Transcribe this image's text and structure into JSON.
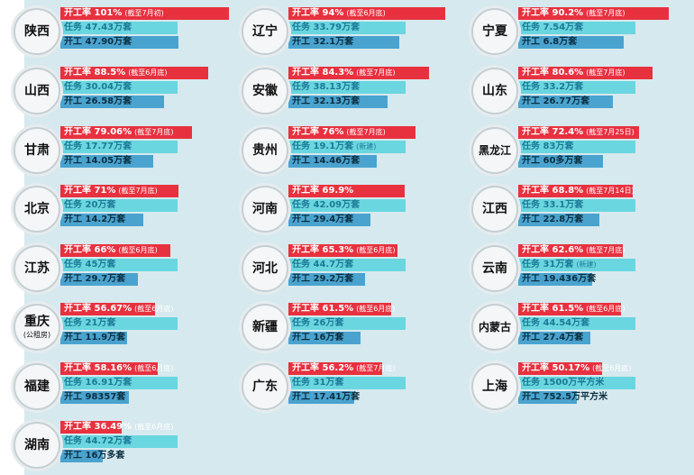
{
  "chart_data": {
    "type": "bar",
    "title": "",
    "xlabel": "",
    "ylabel": "",
    "colors": {
      "rate": "#e8313f",
      "task": "#6ad6df",
      "start": "#4aa3cf",
      "background": "#d6e9ee"
    },
    "series": [
      {
        "key": "rate",
        "name": "开工率"
      },
      {
        "key": "task",
        "name": "任务"
      },
      {
        "key": "start",
        "name": "开工"
      }
    ],
    "provinces": [
      {
        "name": "陕西",
        "note": "",
        "rate_value": 101,
        "rate_text": "开工率 101%",
        "rate_note": "(截至7月初)",
        "task_value": 47.43,
        "task_text": "任务 47.43万套",
        "task_note": "",
        "start_value": 47.9,
        "start_text": "开工 47.90万套"
      },
      {
        "name": "辽宁",
        "note": "",
        "rate_value": 94,
        "rate_text": "开工率 94%",
        "rate_note": "(截至6月底)",
        "task_value": 33.79,
        "task_text": "任务 33.79万套",
        "task_note": "",
        "start_value": 32.1,
        "start_text": "开工 32.1万套"
      },
      {
        "name": "宁夏",
        "note": "",
        "rate_value": 90.2,
        "rate_text": "开工率 90.2%",
        "rate_note": "(截至7月底)",
        "task_value": 7.54,
        "task_text": "任务 7.54万套",
        "task_note": "",
        "start_value": 6.8,
        "start_text": "开工 6.8万套"
      },
      {
        "name": "山西",
        "note": "",
        "rate_value": 88.5,
        "rate_text": "开工率 88.5%",
        "rate_note": "(截至6月底)",
        "task_value": 30.04,
        "task_text": "任务 30.04万套",
        "task_note": "",
        "start_value": 26.58,
        "start_text": "开工 26.58万套"
      },
      {
        "name": "安徽",
        "note": "",
        "rate_value": 84.3,
        "rate_text": "开工率 84.3%",
        "rate_note": "(截至7月底)",
        "task_value": 38.13,
        "task_text": "任务 38.13万套",
        "task_note": "",
        "start_value": 32.13,
        "start_text": "开工 32.13万套"
      },
      {
        "name": "山东",
        "note": "",
        "rate_value": 80.6,
        "rate_text": "开工率 80.6%",
        "rate_note": "(截至7月底)",
        "task_value": 33.2,
        "task_text": "任务 33.2万套",
        "task_note": "",
        "start_value": 26.77,
        "start_text": "开工 26.77万套"
      },
      {
        "name": "甘肃",
        "note": "",
        "rate_value": 79.06,
        "rate_text": "开工率 79.06%",
        "rate_note": "(截至7月底)",
        "task_value": 17.77,
        "task_text": "任务 17.77万套",
        "task_note": "",
        "start_value": 14.05,
        "start_text": "开工 14.05万套"
      },
      {
        "name": "贵州",
        "note": "",
        "rate_value": 76,
        "rate_text": "开工率 76%",
        "rate_note": "(截至7月底)",
        "task_value": 19.1,
        "task_text": "任务 19.1万套",
        "task_note": "(新建)",
        "start_value": 14.46,
        "start_text": "开工 14.46万套"
      },
      {
        "name": "黑龙江",
        "note": "",
        "rate_value": 72.4,
        "rate_text": "开工率 72.4%",
        "rate_note": "(截至7月25日)",
        "task_value": 83,
        "task_text": "任务 83万套",
        "task_note": "",
        "start_value": 60,
        "start_text": "开工 60多万套"
      },
      {
        "name": "北京",
        "note": "",
        "rate_value": 71,
        "rate_text": "开工率 71%",
        "rate_note": "(截至7月底)",
        "task_value": 20,
        "task_text": "任务 20万套",
        "task_note": "",
        "start_value": 14.2,
        "start_text": "开工 14.2万套"
      },
      {
        "name": "河南",
        "note": "",
        "rate_value": 69.9,
        "rate_text": "开工率 69.9%",
        "rate_note": "",
        "task_value": 42.09,
        "task_text": "任务 42.09万套",
        "task_note": "",
        "start_value": 29.4,
        "start_text": "开工 29.4万套"
      },
      {
        "name": "江西",
        "note": "",
        "rate_value": 68.8,
        "rate_text": "开工率 68.8%",
        "rate_note": "(截至7月14日)",
        "task_value": 33.1,
        "task_text": "任务 33.1万套",
        "task_note": "",
        "start_value": 22.8,
        "start_text": "开工 22.8万套"
      },
      {
        "name": "江苏",
        "note": "",
        "rate_value": 66,
        "rate_text": "开工率 66%",
        "rate_note": "(截至6月底)",
        "task_value": 45,
        "task_text": "任务 45万套",
        "task_note": "",
        "start_value": 29.7,
        "start_text": "开工 29.7万套"
      },
      {
        "name": "河北",
        "note": "",
        "rate_value": 65.3,
        "rate_text": "开工率 65.3%",
        "rate_note": "(截至6月底)",
        "task_value": 44.7,
        "task_text": "任务 44.7万套",
        "task_note": "",
        "start_value": 29.2,
        "start_text": "开工 29.2万套"
      },
      {
        "name": "云南",
        "note": "",
        "rate_value": 62.6,
        "rate_text": "开工率 62.6%",
        "rate_note": "(截至7月底)",
        "task_value": 31,
        "task_text": "任务 31万套",
        "task_note": "(新建)",
        "start_value": 19.436,
        "start_text": "开工 19.436万套"
      },
      {
        "name": "重庆",
        "note": "(公租房)",
        "rate_value": 56.67,
        "rate_text": "开工率 56.67%",
        "rate_note": "(截至6月底)",
        "task_value": 21,
        "task_text": "任务 21万套",
        "task_note": "",
        "start_value": 11.9,
        "start_text": "开工 11.9万套"
      },
      {
        "name": "新疆",
        "note": "",
        "rate_value": 61.5,
        "rate_text": "开工率 61.5%",
        "rate_note": "(截至6月底)",
        "task_value": 26,
        "task_text": "任务 26万套",
        "task_note": "",
        "start_value": 16,
        "start_text": "开工 16万套"
      },
      {
        "name": "内蒙古",
        "note": "",
        "rate_value": 61.5,
        "rate_text": "开工率 61.5%",
        "rate_note": "(截至6月底)",
        "task_value": 44.54,
        "task_text": "任务 44.54万套",
        "task_note": "",
        "start_value": 27.4,
        "start_text": "开工 27.4万套"
      },
      {
        "name": "福建",
        "note": "",
        "rate_value": 58.16,
        "rate_text": "开工率 58.16%",
        "rate_note": "(截至6月底)",
        "task_value": 16.91,
        "task_text": "任务 16.91万套",
        "task_note": "",
        "start_value": 9.8357,
        "start_text": "开工 98357套"
      },
      {
        "name": "广东",
        "note": "",
        "rate_value": 56.2,
        "rate_text": "开工率 56.2%",
        "rate_note": "(截至7月底)",
        "task_value": 31,
        "task_text": "任务 31万套",
        "task_note": "",
        "start_value": 17.41,
        "start_text": "开工 17.41万套"
      },
      {
        "name": "上海",
        "note": "",
        "rate_value": 50.17,
        "rate_text": "开工率 50.17%",
        "rate_note": "(截至6月底)",
        "task_value": 1500,
        "task_text": "任务 1500万平方米",
        "task_note": "",
        "start_value": 752.5,
        "start_text": "开工 752.5万平方米"
      },
      {
        "name": "湖南",
        "note": "",
        "rate_value": 36.49,
        "rate_text": "开工率 36.49%",
        "rate_note": "(截至6月底)",
        "task_value": 44.72,
        "task_text": "任务 44.72万套",
        "task_note": "",
        "start_value": 16,
        "start_text": "开工 16万多套"
      }
    ]
  }
}
